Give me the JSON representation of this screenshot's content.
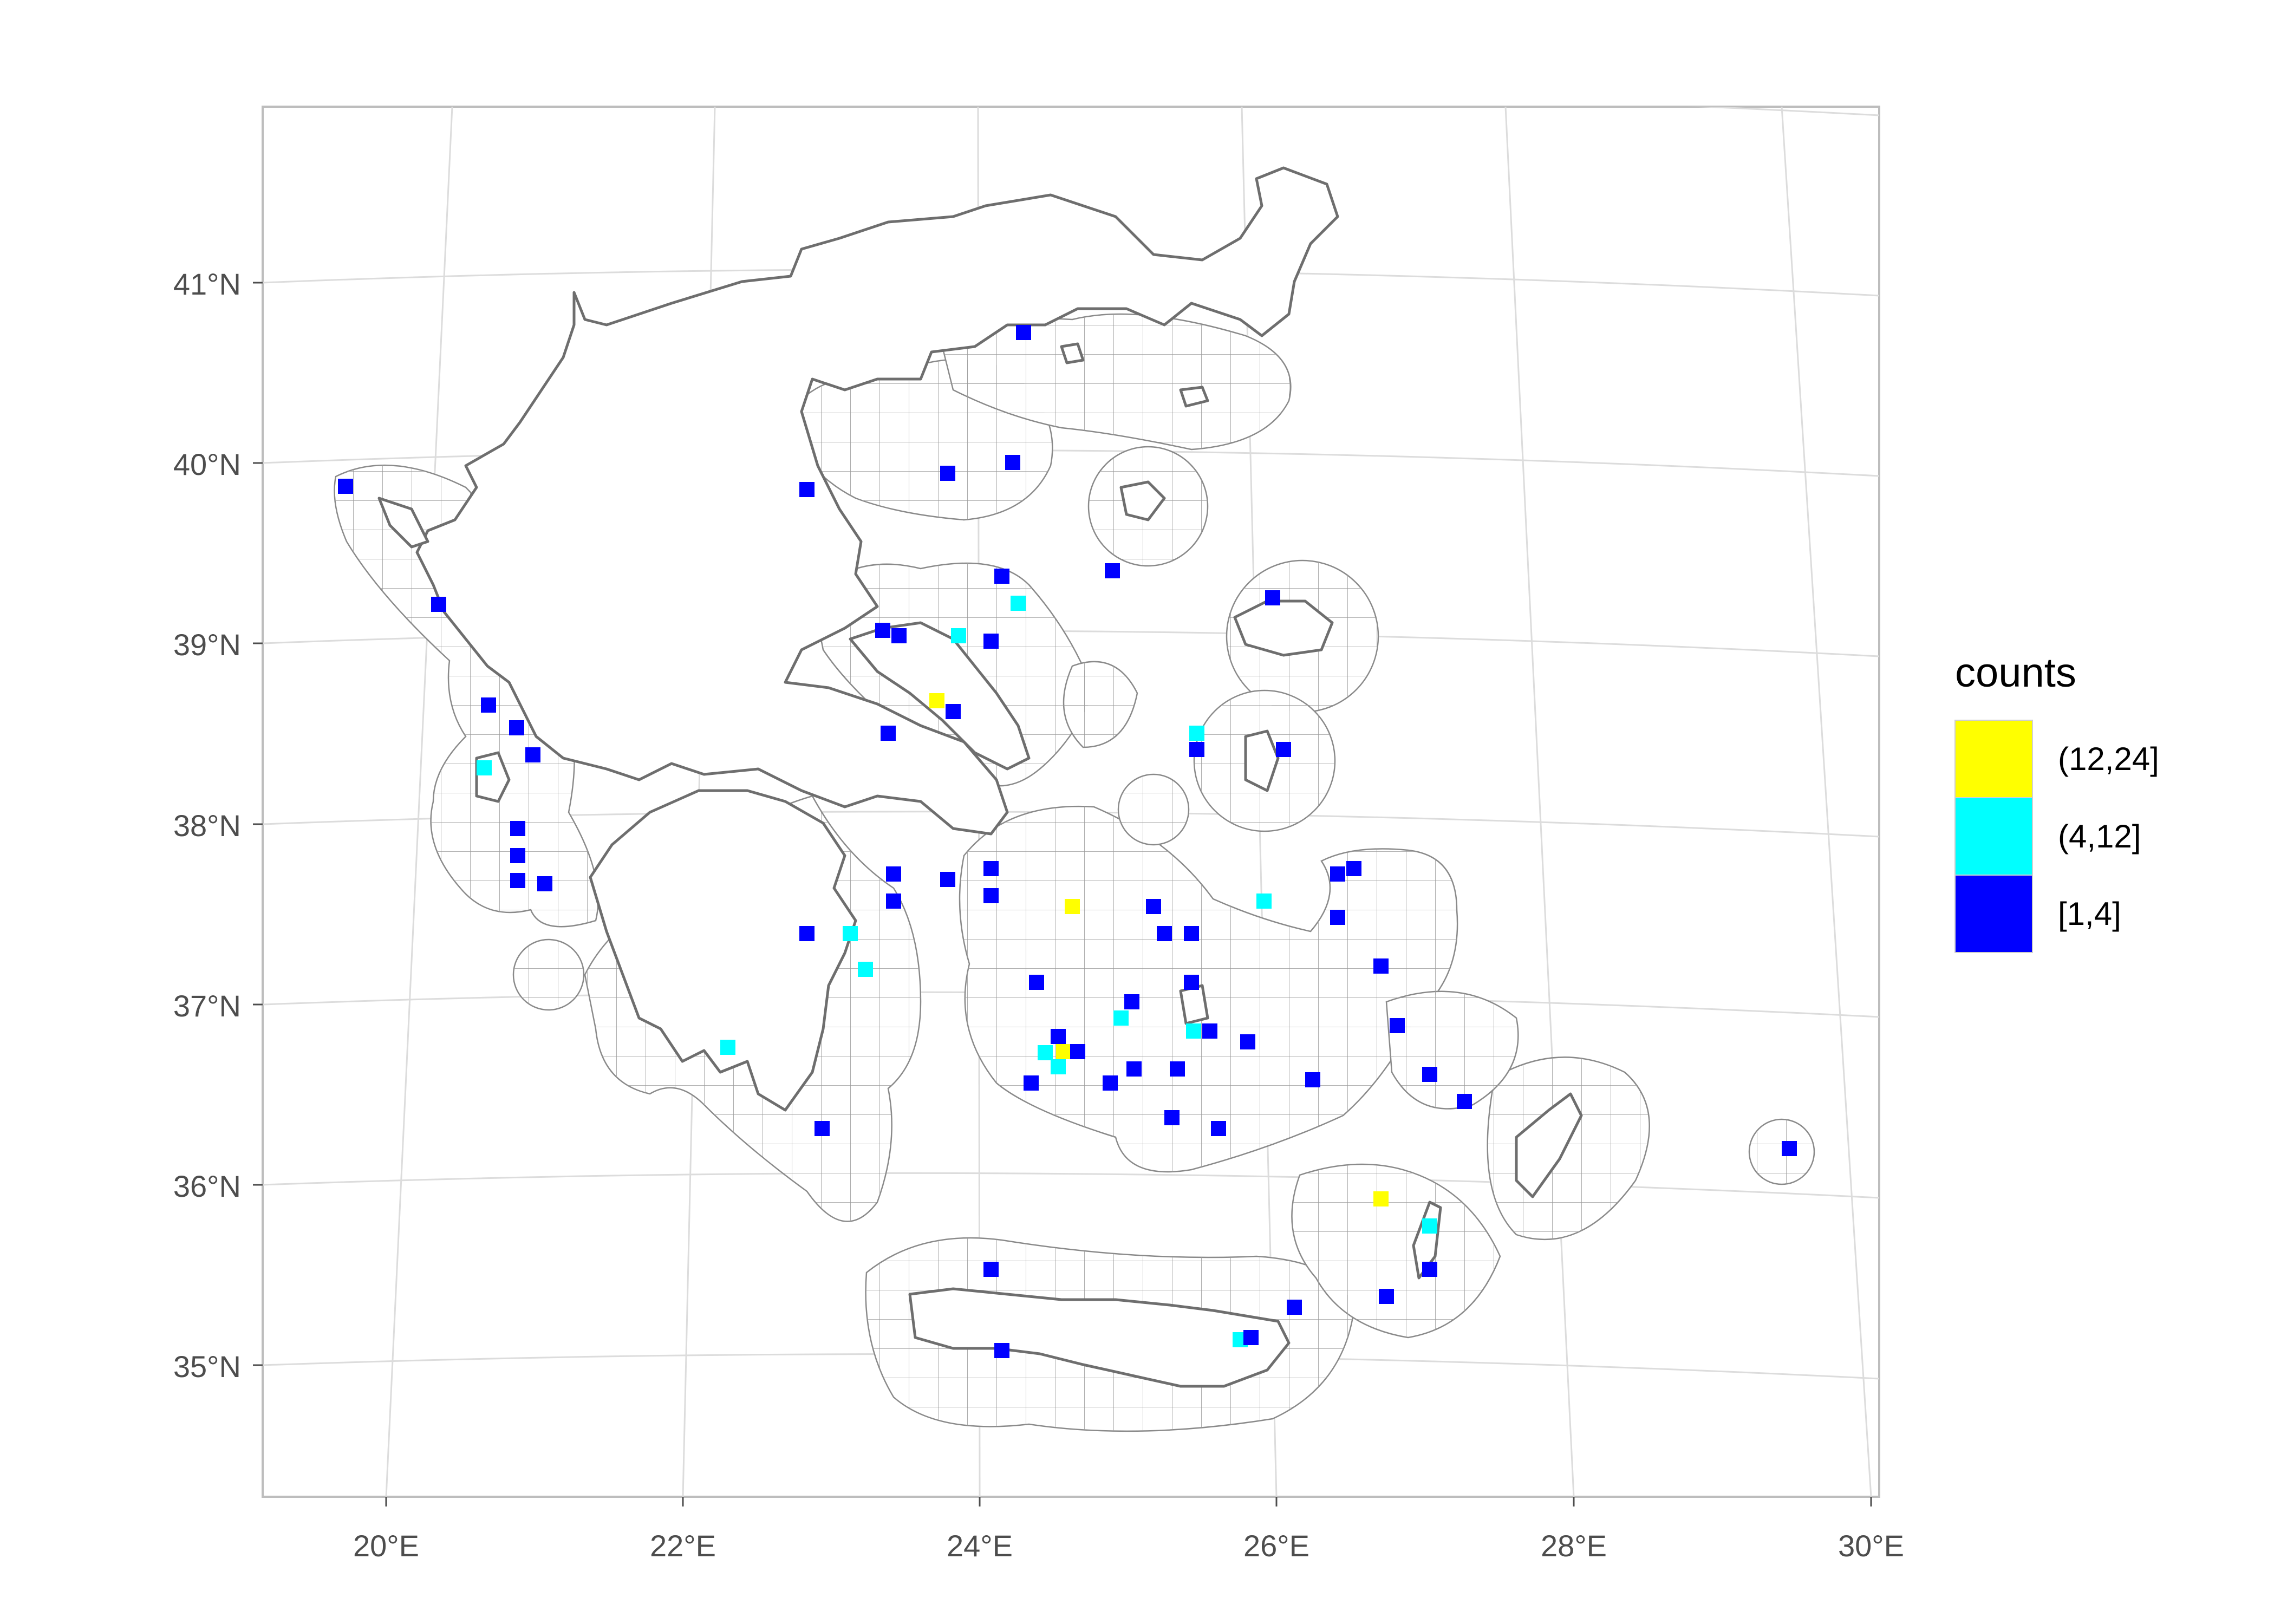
{
  "map": {
    "lat_ticks": [
      "35°N",
      "36°N",
      "37°N",
      "38°N",
      "39°N",
      "40°N",
      "41°N"
    ],
    "lon_ticks": [
      "20°E",
      "22°E",
      "24°E",
      "26°E",
      "28°E",
      "30°E"
    ],
    "extent": {
      "lon": [
        19.2,
        30.1
      ],
      "lat": [
        34.3,
        42.0
      ]
    }
  },
  "legend": {
    "title": "counts",
    "items": [
      {
        "label": "(12,24]",
        "color": "#FFFF00"
      },
      {
        "label": "(4,12]",
        "color": "#00FFFF"
      },
      {
        "label": "[1,4]",
        "color": "#0000FF"
      }
    ]
  },
  "colors": {
    "grid": "#dcdcdc",
    "coast": "#6e6e6e",
    "panel_border": "#bdbdbd",
    "high": "#FFFF00",
    "mid": "#00FFFF",
    "low": "#0000FF"
  }
}
